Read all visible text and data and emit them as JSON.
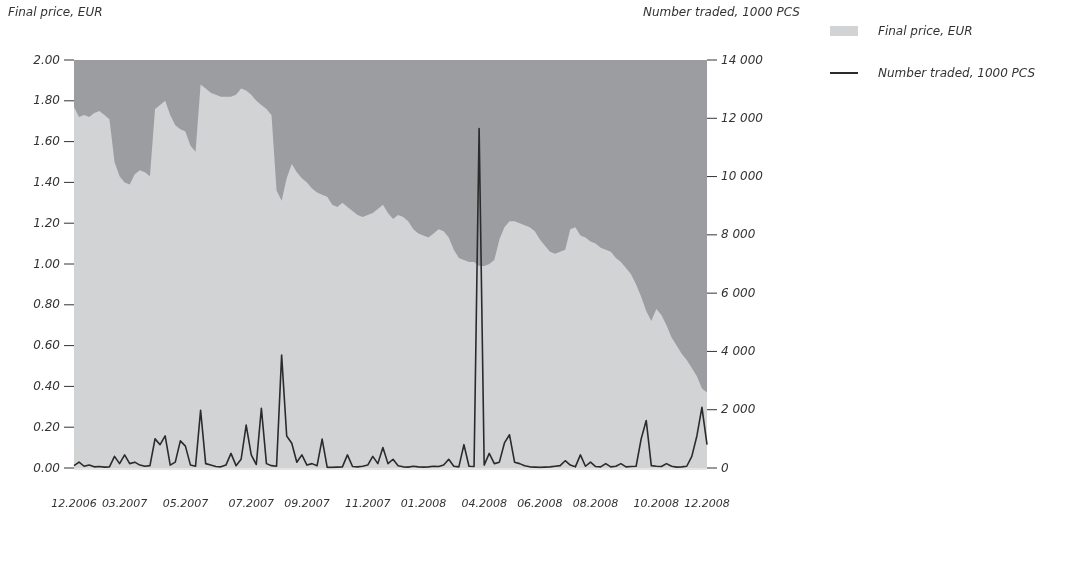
{
  "chart_data": {
    "type": "area",
    "ylabel": "Final price, EUR",
    "y2label": "Number traded, 1000 PCS",
    "categories": [
      "12.2006",
      null,
      null,
      null,
      null,
      null,
      null,
      null,
      null,
      null,
      "03.2007",
      null,
      null,
      null,
      null,
      null,
      null,
      null,
      null,
      null,
      null,
      null,
      "05.2007",
      null,
      null,
      null,
      null,
      null,
      null,
      null,
      null,
      null,
      null,
      null,
      null,
      "07.2007",
      null,
      null,
      null,
      null,
      null,
      null,
      null,
      null,
      null,
      null,
      "09.2007",
      null,
      null,
      null,
      null,
      null,
      null,
      null,
      null,
      null,
      null,
      null,
      "11.2007",
      null,
      null,
      null,
      null,
      null,
      null,
      null,
      null,
      null,
      null,
      "01.2008",
      null,
      null,
      null,
      null,
      null,
      null,
      null,
      null,
      null,
      null,
      null,
      "04.2008",
      null,
      null,
      null,
      null,
      null,
      null,
      null,
      null,
      null,
      null,
      "06.2008",
      null,
      null,
      null,
      null,
      null,
      null,
      null,
      null,
      null,
      null,
      "08.2008",
      null,
      null,
      null,
      null,
      null,
      null,
      null,
      null,
      null,
      null,
      null,
      "10.2008",
      null,
      null,
      null,
      null,
      null,
      null,
      null,
      null,
      null,
      "12.2008"
    ],
    "series": [
      {
        "name": "Final price, EUR",
        "color": "#d2d3d5",
        "values": [
          1.77,
          1.72,
          1.73,
          1.72,
          1.74,
          1.75,
          1.73,
          1.71,
          1.5,
          1.43,
          1.4,
          1.39,
          1.44,
          1.46,
          1.45,
          1.43,
          1.76,
          1.78,
          1.8,
          1.73,
          1.68,
          1.66,
          1.65,
          1.58,
          1.55,
          1.88,
          1.86,
          1.84,
          1.83,
          1.82,
          1.82,
          1.82,
          1.83,
          1.86,
          1.85,
          1.83,
          1.8,
          1.78,
          1.76,
          1.73,
          1.36,
          1.31,
          1.42,
          1.49,
          1.45,
          1.42,
          1.4,
          1.37,
          1.35,
          1.34,
          1.33,
          1.29,
          1.28,
          1.3,
          1.28,
          1.26,
          1.24,
          1.23,
          1.24,
          1.25,
          1.27,
          1.29,
          1.25,
          1.22,
          1.24,
          1.23,
          1.21,
          1.17,
          1.15,
          1.14,
          1.13,
          1.15,
          1.17,
          1.16,
          1.13,
          1.07,
          1.03,
          1.02,
          1.01,
          1.01,
          0.99,
          0.99,
          1.0,
          1.02,
          1.12,
          1.18,
          1.21,
          1.21,
          1.2,
          1.19,
          1.18,
          1.16,
          1.12,
          1.09,
          1.06,
          1.05,
          1.06,
          1.07,
          1.17,
          1.18,
          1.14,
          1.13,
          1.11,
          1.1,
          1.08,
          1.07,
          1.06,
          1.03,
          1.01,
          0.98,
          0.95,
          0.9,
          0.84,
          0.77,
          0.72,
          0.78,
          0.75,
          0.7,
          0.64,
          0.6,
          0.56,
          0.53,
          0.49,
          0.45,
          0.39,
          0.37
        ]
      },
      {
        "name": "Number traded, 1000 PCS",
        "type": "line",
        "axis": "y2",
        "color": "#2b2b2b",
        "values": [
          80,
          200,
          60,
          100,
          40,
          50,
          30,
          40,
          400,
          150,
          450,
          150,
          200,
          100,
          60,
          80,
          1000,
          800,
          1100,
          100,
          200,
          930,
          750,
          100,
          60,
          1980,
          150,
          100,
          50,
          40,
          100,
          500,
          80,
          300,
          1470,
          450,
          120,
          2050,
          150,
          80,
          60,
          3880,
          1100,
          850,
          200,
          450,
          100,
          150,
          80,
          990,
          20,
          20,
          30,
          40,
          450,
          50,
          40,
          60,
          100,
          400,
          150,
          700,
          150,
          300,
          80,
          40,
          30,
          60,
          40,
          30,
          40,
          60,
          50,
          100,
          300,
          60,
          40,
          800,
          60,
          50,
          11650,
          100,
          500,
          150,
          200,
          860,
          1140,
          200,
          150,
          80,
          40,
          30,
          20,
          30,
          40,
          60,
          80,
          250,
          100,
          40,
          450,
          60,
          200,
          50,
          40,
          150,
          40,
          60,
          150,
          40,
          50,
          60,
          1000,
          1630,
          80,
          60,
          50,
          150,
          60,
          30,
          40,
          60,
          400,
          1100,
          2080,
          800
        ]
      }
    ],
    "ylim": [
      0,
      2
    ],
    "yticks": [
      {
        "value": 0,
        "label": "0.00"
      },
      {
        "value": 0.2,
        "label": "0.20"
      },
      {
        "value": 0.4,
        "label": "0.40"
      },
      {
        "value": 0.6,
        "label": "0.60"
      },
      {
        "value": 0.8,
        "label": "0.80"
      },
      {
        "value": 1,
        "label": "1.00"
      },
      {
        "value": 1.2,
        "label": "1.20"
      },
      {
        "value": 1.4,
        "label": "1.40"
      },
      {
        "value": 1.6,
        "label": "1.60"
      },
      {
        "value": 1.8,
        "label": "1.80"
      },
      {
        "value": 2,
        "label": "2.00"
      }
    ],
    "y2lim": [
      0,
      14000
    ],
    "y2ticks": [
      {
        "value": 0,
        "label": "0"
      },
      {
        "value": 2000,
        "label": "2 000"
      },
      {
        "value": 4000,
        "label": "4 000"
      },
      {
        "value": 6000,
        "label": "6 000"
      },
      {
        "value": 8000,
        "label": "8 000"
      },
      {
        "value": 10000,
        "label": "10 000"
      },
      {
        "value": 12000,
        "label": "12 000"
      },
      {
        "value": 14000,
        "label": "14 000"
      }
    ],
    "legend": "right",
    "grid": false
  }
}
